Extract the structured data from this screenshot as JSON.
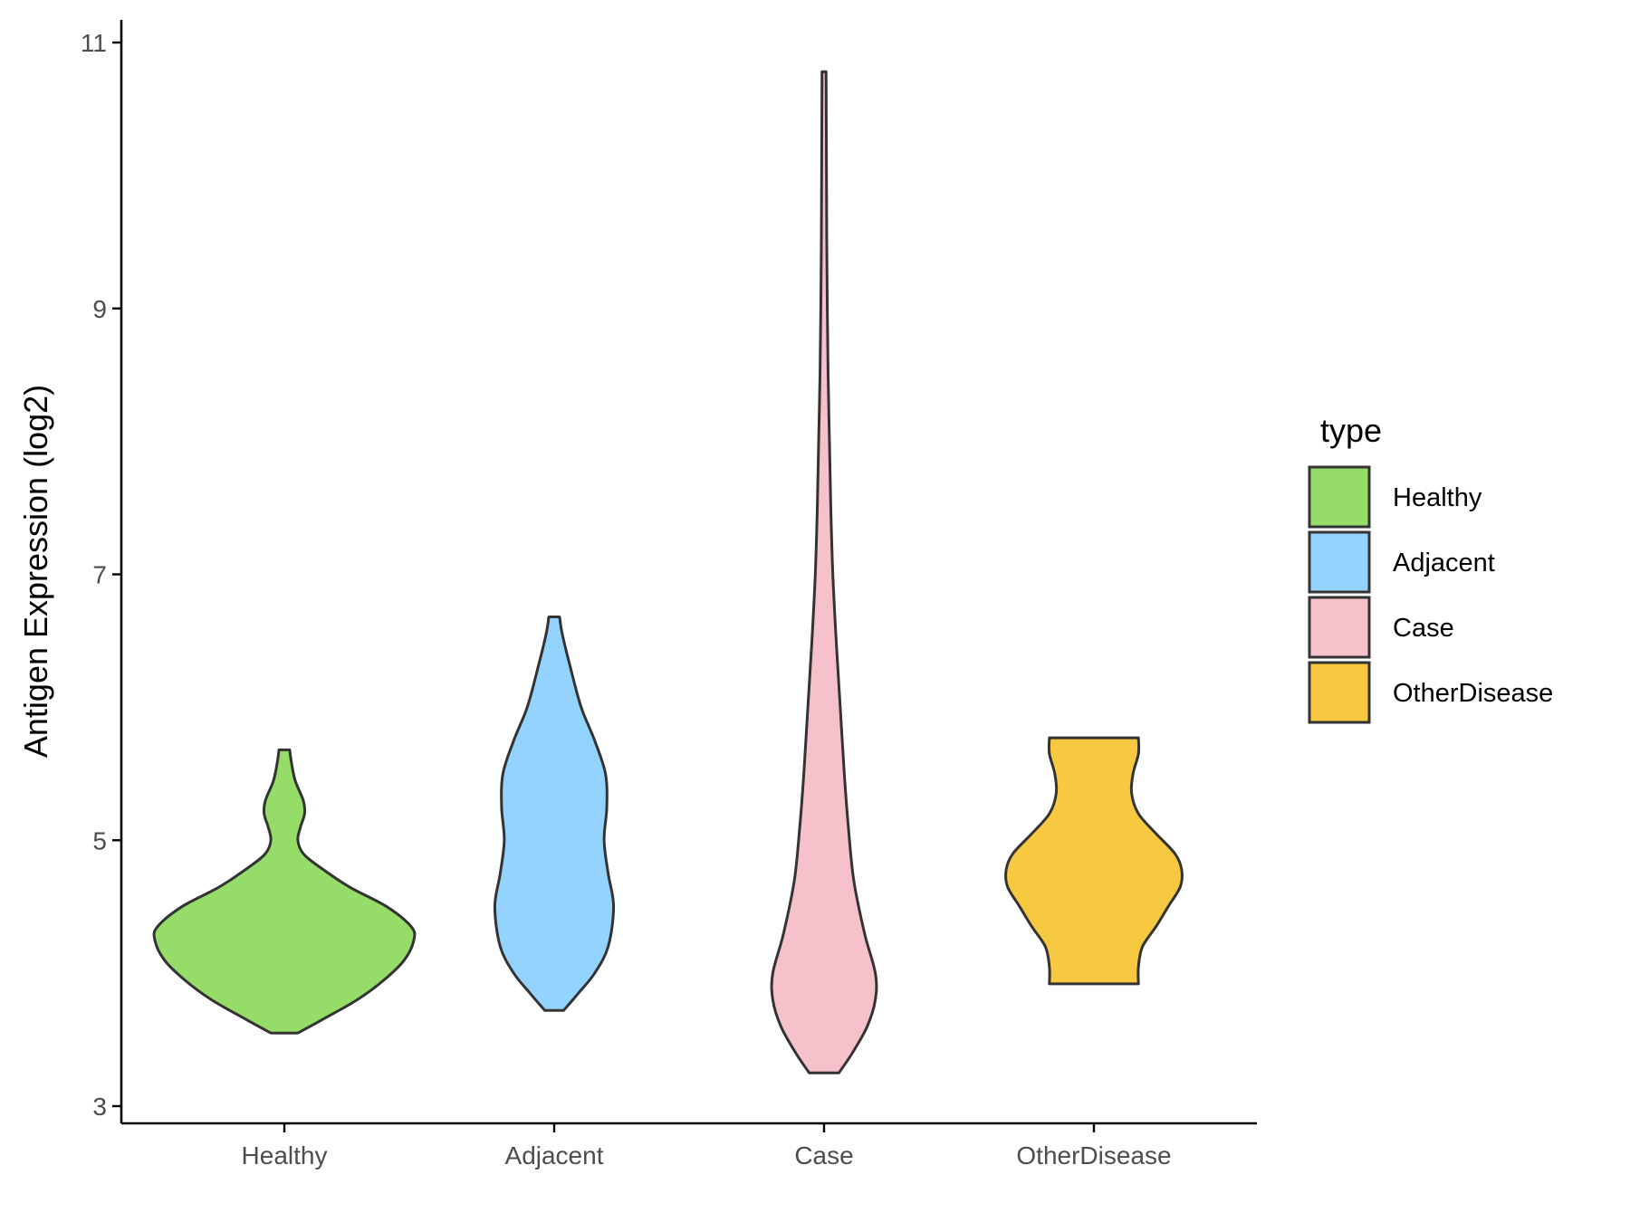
{
  "chart_data": {
    "type": "violin",
    "title": "",
    "xlabel": "",
    "ylabel": "Antigen Expression (log2)",
    "ylim": [
      2.9,
      11.2
    ],
    "yticks": [
      3,
      5,
      7,
      9,
      11
    ],
    "categories": [
      "Healthy",
      "Adjacent",
      "Case",
      "OtherDisease"
    ],
    "legend": {
      "title": "type",
      "position": "right"
    },
    "series": [
      {
        "name": "Healthy",
        "color": "#95dc68",
        "min": 3.55,
        "max": 5.68,
        "profile": [
          [
            3.55,
            0.1
          ],
          [
            3.65,
            0.28
          ],
          [
            3.8,
            0.54
          ],
          [
            3.95,
            0.74
          ],
          [
            4.1,
            0.89
          ],
          [
            4.25,
            0.96
          ],
          [
            4.35,
            0.94
          ],
          [
            4.5,
            0.76
          ],
          [
            4.65,
            0.48
          ],
          [
            4.8,
            0.26
          ],
          [
            4.9,
            0.14
          ],
          [
            5.0,
            0.1
          ],
          [
            5.1,
            0.12
          ],
          [
            5.2,
            0.15
          ],
          [
            5.3,
            0.14
          ],
          [
            5.45,
            0.08
          ],
          [
            5.6,
            0.05
          ],
          [
            5.68,
            0.04
          ]
        ]
      },
      {
        "name": "Adjacent",
        "color": "#93d3fd",
        "min": 3.72,
        "max": 6.68,
        "profile": [
          [
            3.72,
            0.07
          ],
          [
            3.85,
            0.18
          ],
          [
            4.0,
            0.3
          ],
          [
            4.2,
            0.4
          ],
          [
            4.5,
            0.44
          ],
          [
            4.75,
            0.4
          ],
          [
            5.0,
            0.37
          ],
          [
            5.25,
            0.39
          ],
          [
            5.5,
            0.38
          ],
          [
            5.75,
            0.3
          ],
          [
            6.0,
            0.2
          ],
          [
            6.3,
            0.12
          ],
          [
            6.55,
            0.06
          ],
          [
            6.68,
            0.04
          ]
        ]
      },
      {
        "name": "Case",
        "color": "#f7c1cc",
        "min": 3.25,
        "max": 10.78,
        "profile": [
          [
            3.25,
            0.11
          ],
          [
            3.4,
            0.21
          ],
          [
            3.6,
            0.32
          ],
          [
            3.8,
            0.38
          ],
          [
            4.0,
            0.38
          ],
          [
            4.3,
            0.3
          ],
          [
            4.7,
            0.22
          ],
          [
            5.1,
            0.18
          ],
          [
            5.5,
            0.15
          ],
          [
            6.0,
            0.12
          ],
          [
            6.5,
            0.09
          ],
          [
            7.0,
            0.065
          ],
          [
            7.5,
            0.05
          ],
          [
            8.0,
            0.04
          ],
          [
            8.5,
            0.03
          ],
          [
            9.0,
            0.024
          ],
          [
            9.5,
            0.02
          ],
          [
            10.0,
            0.018
          ],
          [
            10.5,
            0.016
          ],
          [
            10.78,
            0.015
          ]
        ]
      },
      {
        "name": "OtherDisease",
        "color": "#f6c940",
        "min": 3.92,
        "max": 5.77,
        "profile": [
          [
            3.92,
            0.33
          ],
          [
            4.05,
            0.33
          ],
          [
            4.2,
            0.36
          ],
          [
            4.35,
            0.46
          ],
          [
            4.5,
            0.55
          ],
          [
            4.65,
            0.64
          ],
          [
            4.78,
            0.65
          ],
          [
            4.9,
            0.6
          ],
          [
            5.05,
            0.46
          ],
          [
            5.2,
            0.33
          ],
          [
            5.35,
            0.28
          ],
          [
            5.5,
            0.29
          ],
          [
            5.65,
            0.33
          ],
          [
            5.77,
            0.33
          ]
        ]
      }
    ]
  }
}
